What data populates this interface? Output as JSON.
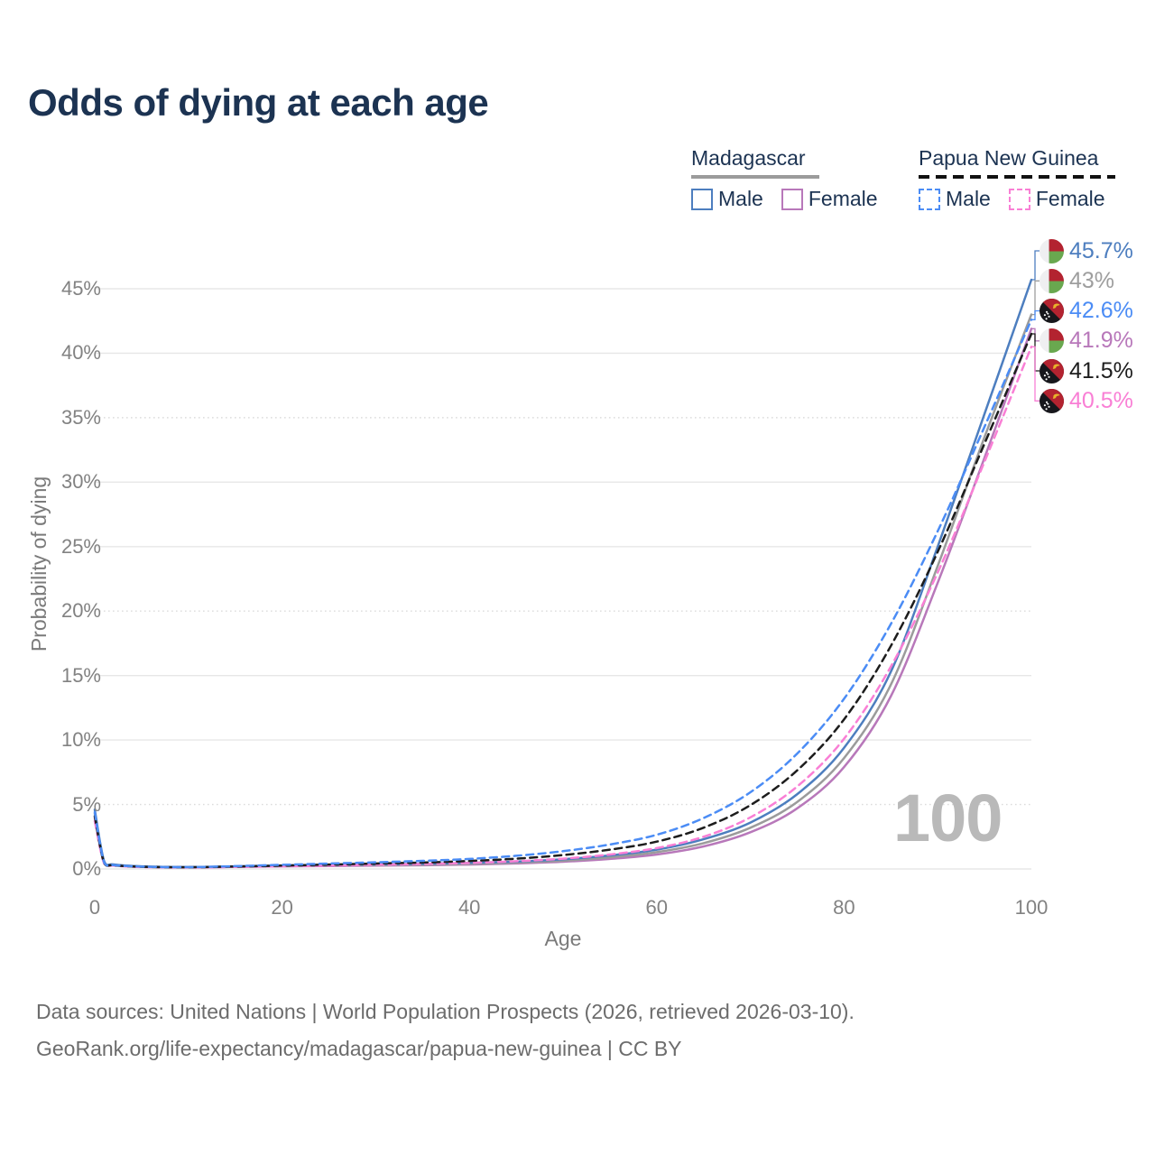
{
  "title": "Odds of dying at each age",
  "legend": {
    "groups": [
      {
        "country": "Madagascar",
        "line_style": "solid",
        "underline_color": "#9b9b9b",
        "items": [
          {
            "label": "Male",
            "color": "#4d7ebf"
          },
          {
            "label": "Female",
            "color": "#b878ba"
          }
        ]
      },
      {
        "country": "Papua New Guinea",
        "line_style": "dashed",
        "underline_color": "#111111",
        "items": [
          {
            "label": "Male",
            "color": "#4b8cf5"
          },
          {
            "label": "Female",
            "color": "#f97fd5"
          }
        ]
      }
    ]
  },
  "watermark": {
    "text": "100"
  },
  "footer": {
    "line1": "Data sources: United Nations | World Population Prospects (2026, retrieved 2026-03-10).",
    "line2": "GeoRank.org/life-expectancy/madagascar/papua-new-guinea | CC BY"
  },
  "chart_data": {
    "type": "line",
    "title": "Odds of dying at each age",
    "xlabel": "Age",
    "ylabel": "Probability of dying",
    "xlim": [
      0,
      100
    ],
    "ylim_pct": [
      0,
      47
    ],
    "x_ticks": [
      "0",
      "20",
      "40",
      "60",
      "80",
      "100"
    ],
    "y_ticks": [
      "0%",
      "5%",
      "10%",
      "15%",
      "20%",
      "25%",
      "30%",
      "35%",
      "40%",
      "45%"
    ],
    "dotted_gridlines_pct": [
      5,
      20,
      35
    ],
    "grid": true,
    "legend_position": "top-right",
    "ages": [
      0,
      1,
      2,
      5,
      10,
      15,
      20,
      25,
      30,
      35,
      40,
      45,
      50,
      55,
      60,
      65,
      70,
      75,
      80,
      85,
      90,
      95,
      100
    ],
    "series": [
      {
        "id": "mg-female",
        "name": "Madagascar Female",
        "color": "#b878ba",
        "dashed": false,
        "values_pct": [
          4.0,
          0.5,
          0.3,
          0.18,
          0.12,
          0.16,
          0.2,
          0.23,
          0.26,
          0.29,
          0.34,
          0.43,
          0.56,
          0.78,
          1.12,
          1.75,
          2.85,
          4.7,
          7.9,
          13.4,
          22.2,
          31.9,
          41.9
        ]
      },
      {
        "id": "mg-both",
        "name": "Madagascar Both sexes",
        "color": "#9b9b9b",
        "dashed": false,
        "values_pct": [
          4.3,
          0.55,
          0.33,
          0.19,
          0.14,
          0.18,
          0.23,
          0.27,
          0.3,
          0.34,
          0.4,
          0.49,
          0.64,
          0.9,
          1.3,
          2.0,
          3.2,
          5.2,
          8.6,
          14.3,
          23.5,
          33.5,
          43.0
        ]
      },
      {
        "id": "mg-male",
        "name": "Madagascar Male",
        "color": "#4d7ebf",
        "dashed": false,
        "values_pct": [
          4.6,
          0.6,
          0.35,
          0.2,
          0.15,
          0.2,
          0.27,
          0.32,
          0.36,
          0.4,
          0.47,
          0.57,
          0.75,
          1.05,
          1.5,
          2.3,
          3.6,
          5.8,
          9.4,
          15.3,
          25.0,
          35.3,
          45.7
        ]
      },
      {
        "id": "pg-female",
        "name": "Papua New Guinea Female",
        "color": "#f97fd5",
        "dashed": true,
        "values_pct": [
          3.7,
          0.42,
          0.26,
          0.15,
          0.11,
          0.16,
          0.21,
          0.27,
          0.33,
          0.39,
          0.47,
          0.6,
          0.8,
          1.12,
          1.62,
          2.5,
          4.0,
          6.4,
          10.1,
          15.7,
          23.0,
          31.6,
          40.5
        ]
      },
      {
        "id": "pg-both",
        "name": "Papua New Guinea Both sexes",
        "color": "#1d1d1d",
        "dashed": true,
        "values_pct": [
          4.1,
          0.46,
          0.28,
          0.17,
          0.13,
          0.19,
          0.26,
          0.34,
          0.42,
          0.5,
          0.62,
          0.8,
          1.08,
          1.5,
          2.12,
          3.2,
          4.95,
          7.65,
          11.6,
          17.3,
          24.6,
          33.0,
          41.5
        ]
      },
      {
        "id": "pg-male",
        "name": "Papua New Guinea Male",
        "color": "#4b8cf5",
        "dashed": true,
        "values_pct": [
          4.4,
          0.5,
          0.3,
          0.18,
          0.14,
          0.22,
          0.32,
          0.42,
          0.52,
          0.63,
          0.78,
          1.02,
          1.38,
          1.9,
          2.65,
          3.95,
          5.95,
          8.95,
          13.2,
          19.0,
          26.2,
          34.3,
          42.6
        ]
      }
    ],
    "end_labels": [
      {
        "series": "mg-male",
        "label": "45.7%",
        "color": "#4d7ebf",
        "flag": "madagascar"
      },
      {
        "series": "mg-both",
        "label": "43%",
        "color": "#9e9e9e",
        "flag": "madagascar"
      },
      {
        "series": "pg-male",
        "label": "42.6%",
        "color": "#4b8cf5",
        "flag": "papua-new-guinea"
      },
      {
        "series": "mg-female",
        "label": "41.9%",
        "color": "#b878ba",
        "flag": "madagascar"
      },
      {
        "series": "pg-both",
        "label": "41.5%",
        "color": "#1d1d1d",
        "flag": "papua-new-guinea"
      },
      {
        "series": "pg-female",
        "label": "40.5%",
        "color": "#f97fd5",
        "flag": "papua-new-guinea"
      }
    ],
    "flag_colors": {
      "madagascar": {
        "white": "#efeff1",
        "red": "#b32330",
        "green": "#69a84f"
      },
      "papua_new_guinea": {
        "black": "#17171c",
        "red": "#b32330",
        "gold": "#e8b32a",
        "star": "#ffffff"
      }
    }
  }
}
